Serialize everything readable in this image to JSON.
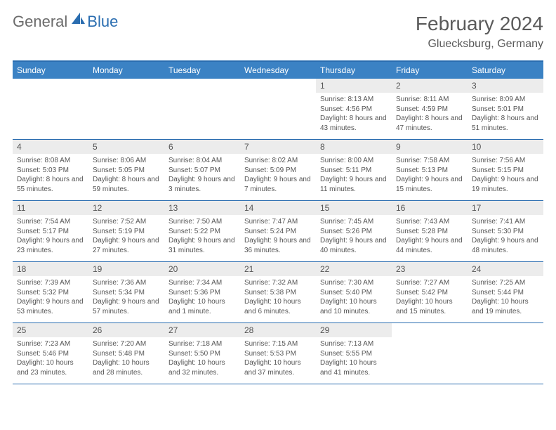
{
  "brand": {
    "general": "General",
    "blue": "Blue"
  },
  "title": "February 2024",
  "location": "Gluecksburg, Germany",
  "colors": {
    "header_bar": "#3b82c4",
    "accent_border": "#2a6db0",
    "daynum_bg": "#ececec",
    "text": "#555555",
    "bg": "#ffffff"
  },
  "fonts": {
    "title_size": 28,
    "location_size": 16,
    "weekday_size": 12,
    "daynum_size": 12,
    "body_size": 10
  },
  "weekdays": [
    "Sunday",
    "Monday",
    "Tuesday",
    "Wednesday",
    "Thursday",
    "Friday",
    "Saturday"
  ],
  "weeks": [
    [
      {
        "n": "",
        "sunrise": "",
        "sunset": "",
        "daylight": ""
      },
      {
        "n": "",
        "sunrise": "",
        "sunset": "",
        "daylight": ""
      },
      {
        "n": "",
        "sunrise": "",
        "sunset": "",
        "daylight": ""
      },
      {
        "n": "",
        "sunrise": "",
        "sunset": "",
        "daylight": ""
      },
      {
        "n": "1",
        "sunrise": "Sunrise: 8:13 AM",
        "sunset": "Sunset: 4:56 PM",
        "daylight": "Daylight: 8 hours and 43 minutes."
      },
      {
        "n": "2",
        "sunrise": "Sunrise: 8:11 AM",
        "sunset": "Sunset: 4:59 PM",
        "daylight": "Daylight: 8 hours and 47 minutes."
      },
      {
        "n": "3",
        "sunrise": "Sunrise: 8:09 AM",
        "sunset": "Sunset: 5:01 PM",
        "daylight": "Daylight: 8 hours and 51 minutes."
      }
    ],
    [
      {
        "n": "4",
        "sunrise": "Sunrise: 8:08 AM",
        "sunset": "Sunset: 5:03 PM",
        "daylight": "Daylight: 8 hours and 55 minutes."
      },
      {
        "n": "5",
        "sunrise": "Sunrise: 8:06 AM",
        "sunset": "Sunset: 5:05 PM",
        "daylight": "Daylight: 8 hours and 59 minutes."
      },
      {
        "n": "6",
        "sunrise": "Sunrise: 8:04 AM",
        "sunset": "Sunset: 5:07 PM",
        "daylight": "Daylight: 9 hours and 3 minutes."
      },
      {
        "n": "7",
        "sunrise": "Sunrise: 8:02 AM",
        "sunset": "Sunset: 5:09 PM",
        "daylight": "Daylight: 9 hours and 7 minutes."
      },
      {
        "n": "8",
        "sunrise": "Sunrise: 8:00 AM",
        "sunset": "Sunset: 5:11 PM",
        "daylight": "Daylight: 9 hours and 11 minutes."
      },
      {
        "n": "9",
        "sunrise": "Sunrise: 7:58 AM",
        "sunset": "Sunset: 5:13 PM",
        "daylight": "Daylight: 9 hours and 15 minutes."
      },
      {
        "n": "10",
        "sunrise": "Sunrise: 7:56 AM",
        "sunset": "Sunset: 5:15 PM",
        "daylight": "Daylight: 9 hours and 19 minutes."
      }
    ],
    [
      {
        "n": "11",
        "sunrise": "Sunrise: 7:54 AM",
        "sunset": "Sunset: 5:17 PM",
        "daylight": "Daylight: 9 hours and 23 minutes."
      },
      {
        "n": "12",
        "sunrise": "Sunrise: 7:52 AM",
        "sunset": "Sunset: 5:19 PM",
        "daylight": "Daylight: 9 hours and 27 minutes."
      },
      {
        "n": "13",
        "sunrise": "Sunrise: 7:50 AM",
        "sunset": "Sunset: 5:22 PM",
        "daylight": "Daylight: 9 hours and 31 minutes."
      },
      {
        "n": "14",
        "sunrise": "Sunrise: 7:47 AM",
        "sunset": "Sunset: 5:24 PM",
        "daylight": "Daylight: 9 hours and 36 minutes."
      },
      {
        "n": "15",
        "sunrise": "Sunrise: 7:45 AM",
        "sunset": "Sunset: 5:26 PM",
        "daylight": "Daylight: 9 hours and 40 minutes."
      },
      {
        "n": "16",
        "sunrise": "Sunrise: 7:43 AM",
        "sunset": "Sunset: 5:28 PM",
        "daylight": "Daylight: 9 hours and 44 minutes."
      },
      {
        "n": "17",
        "sunrise": "Sunrise: 7:41 AM",
        "sunset": "Sunset: 5:30 PM",
        "daylight": "Daylight: 9 hours and 48 minutes."
      }
    ],
    [
      {
        "n": "18",
        "sunrise": "Sunrise: 7:39 AM",
        "sunset": "Sunset: 5:32 PM",
        "daylight": "Daylight: 9 hours and 53 minutes."
      },
      {
        "n": "19",
        "sunrise": "Sunrise: 7:36 AM",
        "sunset": "Sunset: 5:34 PM",
        "daylight": "Daylight: 9 hours and 57 minutes."
      },
      {
        "n": "20",
        "sunrise": "Sunrise: 7:34 AM",
        "sunset": "Sunset: 5:36 PM",
        "daylight": "Daylight: 10 hours and 1 minute."
      },
      {
        "n": "21",
        "sunrise": "Sunrise: 7:32 AM",
        "sunset": "Sunset: 5:38 PM",
        "daylight": "Daylight: 10 hours and 6 minutes."
      },
      {
        "n": "22",
        "sunrise": "Sunrise: 7:30 AM",
        "sunset": "Sunset: 5:40 PM",
        "daylight": "Daylight: 10 hours and 10 minutes."
      },
      {
        "n": "23",
        "sunrise": "Sunrise: 7:27 AM",
        "sunset": "Sunset: 5:42 PM",
        "daylight": "Daylight: 10 hours and 15 minutes."
      },
      {
        "n": "24",
        "sunrise": "Sunrise: 7:25 AM",
        "sunset": "Sunset: 5:44 PM",
        "daylight": "Daylight: 10 hours and 19 minutes."
      }
    ],
    [
      {
        "n": "25",
        "sunrise": "Sunrise: 7:23 AM",
        "sunset": "Sunset: 5:46 PM",
        "daylight": "Daylight: 10 hours and 23 minutes."
      },
      {
        "n": "26",
        "sunrise": "Sunrise: 7:20 AM",
        "sunset": "Sunset: 5:48 PM",
        "daylight": "Daylight: 10 hours and 28 minutes."
      },
      {
        "n": "27",
        "sunrise": "Sunrise: 7:18 AM",
        "sunset": "Sunset: 5:50 PM",
        "daylight": "Daylight: 10 hours and 32 minutes."
      },
      {
        "n": "28",
        "sunrise": "Sunrise: 7:15 AM",
        "sunset": "Sunset: 5:53 PM",
        "daylight": "Daylight: 10 hours and 37 minutes."
      },
      {
        "n": "29",
        "sunrise": "Sunrise: 7:13 AM",
        "sunset": "Sunset: 5:55 PM",
        "daylight": "Daylight: 10 hours and 41 minutes."
      },
      {
        "n": "",
        "sunrise": "",
        "sunset": "",
        "daylight": ""
      },
      {
        "n": "",
        "sunrise": "",
        "sunset": "",
        "daylight": ""
      }
    ]
  ]
}
